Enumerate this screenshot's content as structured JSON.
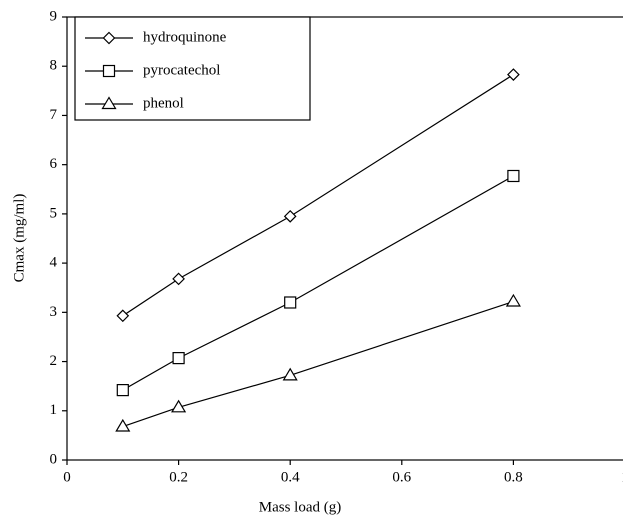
{
  "chart_data": {
    "type": "line",
    "x_label": "Mass load (g)",
    "y_label": "Cmax (mg/ml)",
    "xlim": [
      0,
      1
    ],
    "xticks": [
      0,
      0.2,
      0.4,
      0.6,
      0.8,
      1
    ],
    "ylim": [
      0,
      9
    ],
    "yticks": [
      0,
      1,
      2,
      3,
      4,
      5,
      6,
      7,
      8,
      9
    ],
    "legend_position": "upper-left",
    "series": [
      {
        "name": "hydroquinone",
        "color": "#000000",
        "marker": "diamond",
        "x": [
          0.1,
          0.2,
          0.4,
          0.8
        ],
        "values": [
          2.93,
          3.68,
          4.95,
          7.83
        ]
      },
      {
        "name": "pyrocatechol",
        "color": "#000000",
        "marker": "square",
        "x": [
          0.1,
          0.2,
          0.4,
          0.8
        ],
        "values": [
          1.42,
          2.07,
          3.2,
          5.77
        ]
      },
      {
        "name": "phenol",
        "color": "#000000",
        "marker": "triangle",
        "x": [
          0.1,
          0.2,
          0.4,
          0.8
        ],
        "values": [
          0.68,
          1.07,
          1.72,
          3.22
        ]
      }
    ]
  }
}
